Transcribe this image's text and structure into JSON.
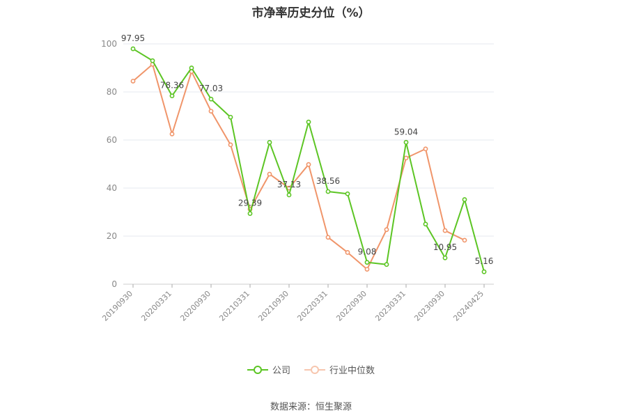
{
  "chart_data": {
    "type": "line",
    "title": "市净率历史分位（%）",
    "xlabel": "",
    "ylabel": "",
    "ylim": [
      0,
      100
    ],
    "yticks": [
      0,
      20,
      40,
      60,
      80,
      100
    ],
    "grid": true,
    "legend": "bottom-center",
    "x": [
      "20190930",
      "20191231",
      "20200331",
      "20200630",
      "20200930",
      "20201231",
      "20210331",
      "20210630",
      "20210930",
      "20211231",
      "20220331",
      "20220630",
      "20220930",
      "20221231",
      "20230331",
      "20230630",
      "20230930",
      "20231231",
      "20240425"
    ],
    "xticks": [
      "20190930",
      "20200331",
      "20200930",
      "20210331",
      "20210930",
      "20220331",
      "20220930",
      "20230331",
      "20230930",
      "20240425"
    ],
    "series": [
      {
        "name": "公司",
        "color": "#5cc524",
        "values": [
          97.95,
          93,
          78.36,
          90,
          77.03,
          69.5,
          29.39,
          59,
          37.13,
          67.5,
          38.56,
          37.6,
          9.08,
          8.2,
          59.04,
          25,
          10.95,
          35.2,
          5.16
        ],
        "labels": [
          "97.95",
          null,
          "78.36",
          null,
          "77.03",
          null,
          "29.39",
          null,
          "37.13",
          null,
          "38.56",
          null,
          "9.08",
          null,
          "59.04",
          null,
          "10.95",
          null,
          "5.16"
        ]
      },
      {
        "name": "行业中位数",
        "color": "#f0956a",
        "values": [
          84.5,
          91.5,
          62.5,
          88.5,
          72,
          58,
          31.2,
          45.8,
          40,
          49.8,
          19.5,
          13.2,
          6.2,
          22.7,
          52.5,
          56.3,
          22.3,
          18.3,
          null
        ]
      }
    ]
  },
  "source_label": "数据来源：恒生聚源"
}
